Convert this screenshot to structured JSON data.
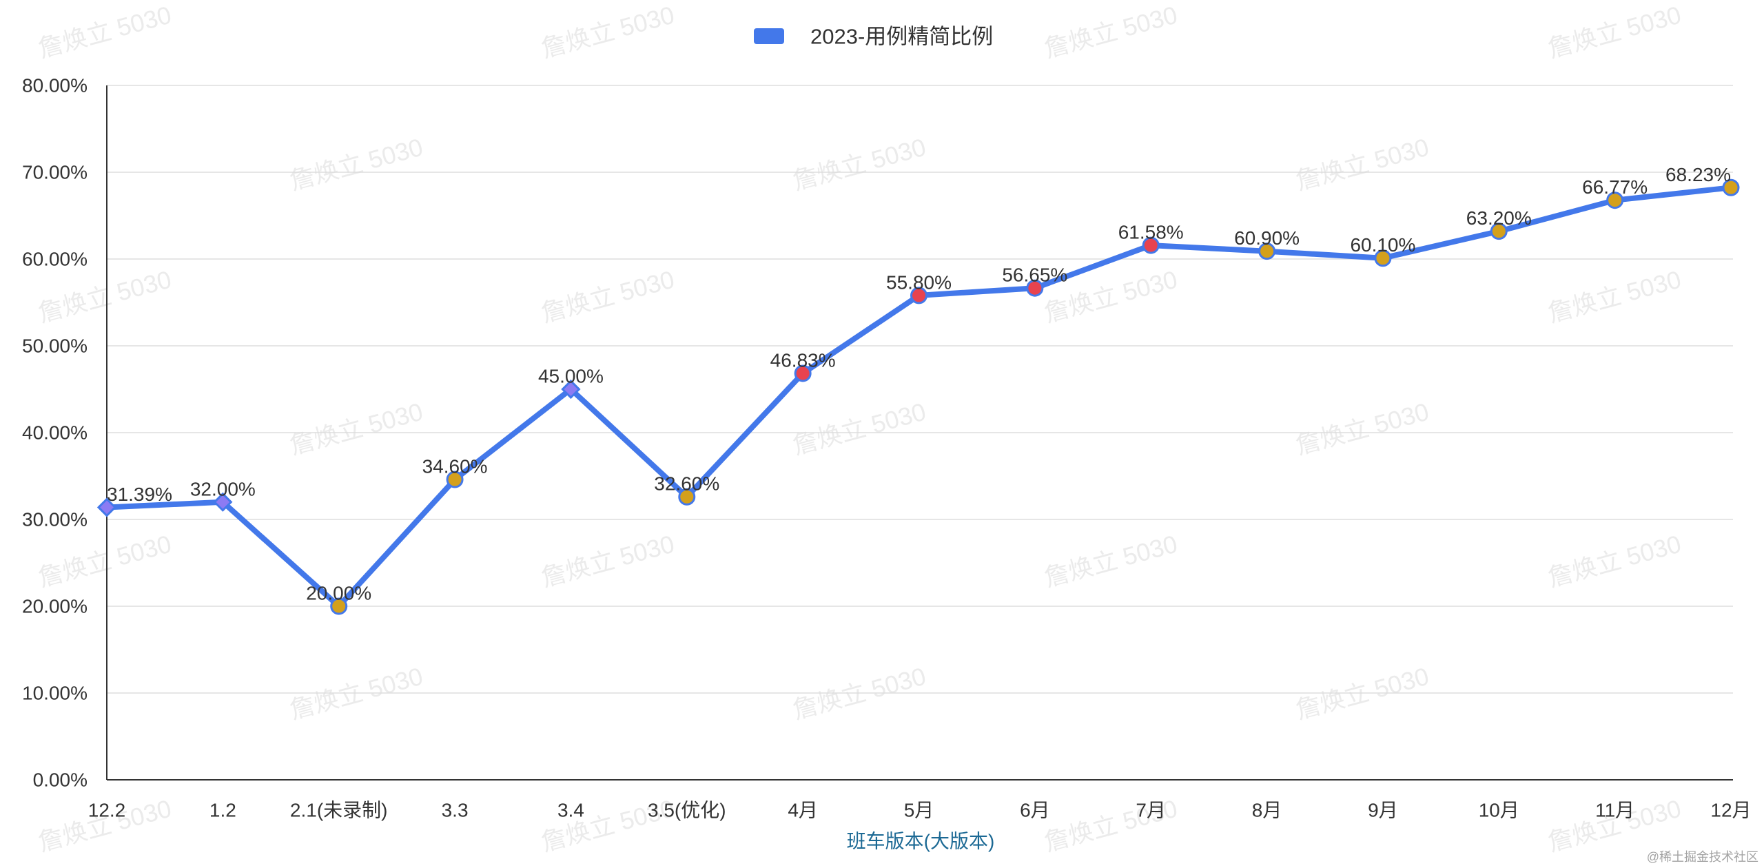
{
  "watermark": {
    "text": "詹焕立 5030"
  },
  "credit": "@稀土掘金技术社区",
  "colors": {
    "background": "#ffffff",
    "axis": "#333333",
    "grid": "#dddddd",
    "tick_text": "#333333",
    "xlabel_text": "#1c6994",
    "watermark": "#ebebeb",
    "credit": "#a3a3a3",
    "marker_border": "#4378ea"
  },
  "chart_data": {
    "type": "line",
    "xlabel": "班车版本(大版本)",
    "ylim": [
      0,
      80
    ],
    "grid": true,
    "legend": "top-center",
    "y_ticks": [
      {
        "value": 0,
        "label": "0.00%"
      },
      {
        "value": 10,
        "label": "10.00%"
      },
      {
        "value": 20,
        "label": "20.00%"
      },
      {
        "value": 30,
        "label": "30.00%"
      },
      {
        "value": 40,
        "label": "40.00%"
      },
      {
        "value": 50,
        "label": "50.00%"
      },
      {
        "value": 60,
        "label": "60.00%"
      },
      {
        "value": 70,
        "label": "70.00%"
      },
      {
        "value": 80,
        "label": "80.00%"
      }
    ],
    "categories": [
      "12.2",
      "1.2",
      "2.1(未录制)",
      "3.3",
      "3.4",
      "3.5(优化)",
      "4月",
      "5月",
      "6月",
      "7月",
      "8月",
      "9月",
      "10月",
      "11月",
      "12月"
    ],
    "series": [
      {
        "name": "2023-用例精简比例",
        "color": "#4378ea",
        "values": [
          31.39,
          32.0,
          20.0,
          34.6,
          45.0,
          32.6,
          46.83,
          55.8,
          56.65,
          61.58,
          60.9,
          60.1,
          63.2,
          66.77,
          68.23
        ],
        "data_labels": [
          "31.39%",
          "32.00%",
          "20.00%",
          "34.60%",
          "45.00%",
          "32.60%",
          "46.83%",
          "55.80%",
          "56.65%",
          "61.58%",
          "60.90%",
          "60.10%",
          "63.20%",
          "66.77%",
          "68.23%"
        ],
        "markers": [
          {
            "symbol": "diamond",
            "color": "#8c7bf3"
          },
          {
            "symbol": "diamond",
            "color": "#8c7bf3"
          },
          {
            "symbol": "circle",
            "color": "#d4a01c"
          },
          {
            "symbol": "circle",
            "color": "#d4a01c"
          },
          {
            "symbol": "diamond",
            "color": "#8c7bf3"
          },
          {
            "symbol": "circle",
            "color": "#d4a01c"
          },
          {
            "symbol": "circle",
            "color": "#e8434f"
          },
          {
            "symbol": "circle",
            "color": "#e8434f"
          },
          {
            "symbol": "circle",
            "color": "#e8434f"
          },
          {
            "symbol": "circle",
            "color": "#e8434f"
          },
          {
            "symbol": "circle",
            "color": "#d4a01c"
          },
          {
            "symbol": "circle",
            "color": "#d4a01c"
          },
          {
            "symbol": "circle",
            "color": "#d4a01c"
          },
          {
            "symbol": "circle",
            "color": "#d4a01c"
          },
          {
            "symbol": "circle",
            "color": "#d4a01c"
          }
        ]
      }
    ]
  }
}
